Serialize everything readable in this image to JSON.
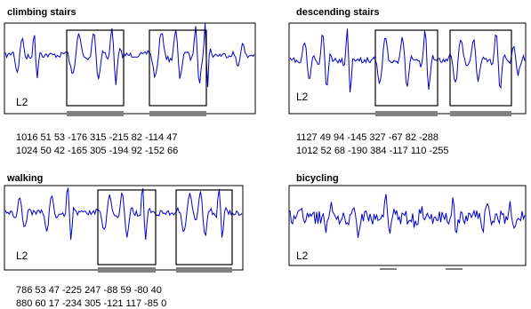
{
  "colors": {
    "signal": "#0000cc",
    "frame": "#000000",
    "background": "#ffffff"
  },
  "panels": [
    {
      "title": "climbing stairs",
      "channel_label": "L2",
      "windows": 2,
      "code_lines": [
        "1016 51 53 -176 315 -215 82 -114 47",
        "1024 50 42 -165 305 -194 92 -152 66"
      ]
    },
    {
      "title": "descending stairs",
      "channel_label": "L2",
      "windows": 2,
      "code_lines": [
        "1127 49 94 -145 327 -67  82  -288",
        "1012 52 68 -190 384 -117 110 -255"
      ]
    },
    {
      "title": "walking",
      "channel_label": "L2",
      "windows": 2,
      "code_lines": [
        "786 53 47 -225 247 -88  59 -80 40",
        "880 60 17 -234 305 -121 117 -85 0"
      ]
    },
    {
      "title": "bicycling",
      "channel_label": "L2",
      "windows": 0,
      "code_lines": []
    }
  ]
}
